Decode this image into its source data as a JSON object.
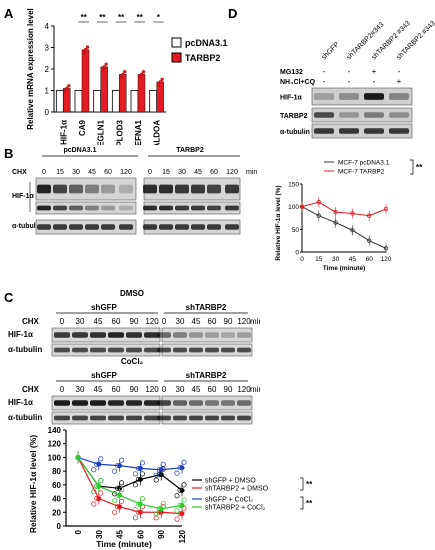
{
  "panels": {
    "A": "A",
    "B": "B",
    "C": "C",
    "D": "D"
  },
  "panelA": {
    "ylabel": "Relative mRNA expression level",
    "yticks": [
      "0",
      "1",
      "2",
      "3",
      "4"
    ],
    "categories": [
      "HIF-1α",
      "CA9",
      "EGLN1",
      "PLOD3",
      "EFNA1",
      "ALDOA"
    ],
    "significance": [
      "**",
      "**",
      "**",
      "**",
      "*"
    ],
    "legend": [
      "pcDNA3.1",
      "TARBP2"
    ],
    "colors": {
      "pcdna": "#ffffff",
      "tarbp2": "#e31b23"
    }
  },
  "panelB": {
    "chx_label": "CHX",
    "group1": "pcDNA3.1",
    "group2": "TARBP2",
    "times": [
      "0",
      "15",
      "30",
      "45",
      "60",
      "120"
    ],
    "unit": "min",
    "rows": [
      "HIF-1α",
      "α-tubulin"
    ],
    "chart": {
      "ylabel": "Relative HIF-1α level (%)",
      "xlabel": "Time (minute)",
      "yticks": [
        "0",
        "50",
        "100",
        "150"
      ],
      "xticks": [
        "0",
        "15",
        "30",
        "45",
        "60",
        "120"
      ],
      "legend": [
        "MCF-7 pcDNA3.1",
        "MCF-7 TARBP2"
      ],
      "sig": "**"
    }
  },
  "panelC": {
    "dmso_title": "DMSO",
    "cocl2_title": "CoCl₂",
    "chx_label": "CHX",
    "shgfp": "shGFP",
    "shtarbp2": "shTARBP2",
    "times": [
      "0",
      "30",
      "45",
      "60",
      "90",
      "120"
    ],
    "unit": "min",
    "rows": [
      "HIF-1α",
      "α-tubulin"
    ],
    "chart": {
      "ylabel": "Relative HIF-1α level (%)",
      "xlabel": "Time (minute)",
      "yticks": [
        "0",
        "20",
        "40",
        "60",
        "80",
        "100",
        "120",
        "140"
      ],
      "xticks": [
        "0",
        "30",
        "45",
        "60",
        "90",
        "120"
      ],
      "legend": [
        "shGFP + DMSO",
        "shTARBP2 + DMSO",
        "shGFP + CoCl₂",
        "shTARBP2 + CoCl₂"
      ],
      "sig1": "**",
      "sig2": "**"
    }
  },
  "panelD": {
    "lanes": [
      "shGFP",
      "shTARBP2#343",
      "shTARBP2 #343",
      "shTARBP2 #343"
    ],
    "mg132_label": "MG132",
    "nh4_label": "NH₄Cl+CQ",
    "mg132": [
      "-",
      "-",
      "+",
      "-"
    ],
    "nh4": [
      "-",
      "-",
      "-",
      "+"
    ],
    "rows": [
      "HIF-1α",
      "TARBP2",
      "α-tubulin"
    ]
  },
  "chart_data": [
    {
      "type": "bar",
      "title": "",
      "ylabel": "Relative mRNA expression level",
      "categories": [
        "HIF-1α",
        "CA9",
        "EGLN1",
        "PLOD3",
        "EFNA1",
        "ALDOA"
      ],
      "ylim": [
        0,
        4
      ],
      "series": [
        {
          "name": "pcDNA3.1",
          "values": [
            1,
            1,
            1,
            1,
            1,
            1
          ]
        },
        {
          "name": "TARBP2",
          "values": [
            1.1,
            2.9,
            2.1,
            1.75,
            1.75,
            1.4
          ]
        }
      ],
      "legend": "top-right"
    },
    {
      "type": "line",
      "ylabel": "Relative HIF-1α level (%)",
      "xlabel": "Time (minute)",
      "x": [
        0,
        15,
        30,
        45,
        60,
        120
      ],
      "ylim": [
        0,
        150
      ],
      "series": [
        {
          "name": "MCF-7 pcDNA3.1",
          "values": [
            100,
            80,
            65,
            48,
            25,
            8
          ],
          "color": "#333333"
        },
        {
          "name": "MCF-7 TARBP2",
          "values": [
            100,
            110,
            88,
            85,
            80,
            95
          ],
          "color": "#e31b23"
        }
      ],
      "legend": "top-right"
    },
    {
      "type": "line",
      "ylabel": "Relative HIF-1α level (%)",
      "xlabel": "Time (minute)",
      "x": [
        0,
        30,
        45,
        60,
        90,
        120
      ],
      "ylim": [
        0,
        140
      ],
      "series": [
        {
          "name": "shGFP + DMSO",
          "values": [
            100,
            58,
            55,
            68,
            75,
            52
          ],
          "color": "#000000"
        },
        {
          "name": "shTARBP2 + DMSO",
          "values": [
            100,
            40,
            28,
            20,
            20,
            18
          ],
          "color": "#e31b23"
        },
        {
          "name": "shGFP + CoCl₂",
          "values": [
            100,
            90,
            88,
            84,
            82,
            85
          ],
          "color": "#1f3fbf"
        },
        {
          "name": "shTARBP2 + CoCl₂",
          "values": [
            100,
            58,
            45,
            32,
            25,
            30
          ],
          "color": "#2ecc2e"
        }
      ],
      "legend": "right"
    }
  ]
}
